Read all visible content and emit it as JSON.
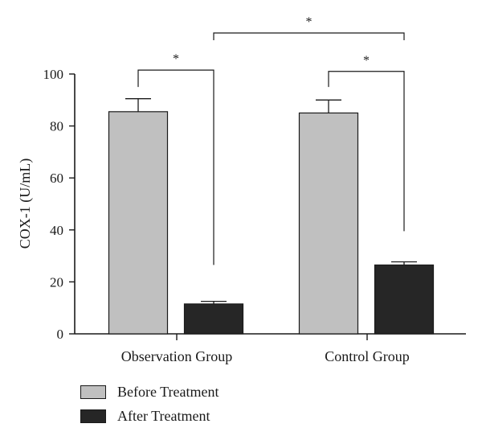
{
  "chart_data": {
    "type": "bar",
    "title": "",
    "xlabel": "",
    "ylabel": "COX-1 (U/mL)",
    "ylim": [
      0,
      100
    ],
    "yticks": [
      0,
      20,
      40,
      60,
      80,
      100
    ],
    "categories": [
      "Observation Group",
      "Control Group"
    ],
    "series": [
      {
        "name": "Before Treatment",
        "values": [
          85.5,
          85
        ],
        "errors": [
          5,
          5
        ],
        "color": "#c0c0c0"
      },
      {
        "name": "After Treatment",
        "values": [
          11.5,
          26.5
        ],
        "errors": [
          1,
          1.2
        ],
        "color": "#262626"
      }
    ],
    "significance": [
      {
        "label": "*",
        "between": "Observation Group: Before Treatment vs After Treatment"
      },
      {
        "label": "*",
        "between": "Control Group: Before Treatment vs After Treatment"
      },
      {
        "label": "*",
        "between": "Observation Group vs Control Group (After Treatment)"
      }
    ],
    "legend_position": "bottom-left",
    "grid": false
  }
}
